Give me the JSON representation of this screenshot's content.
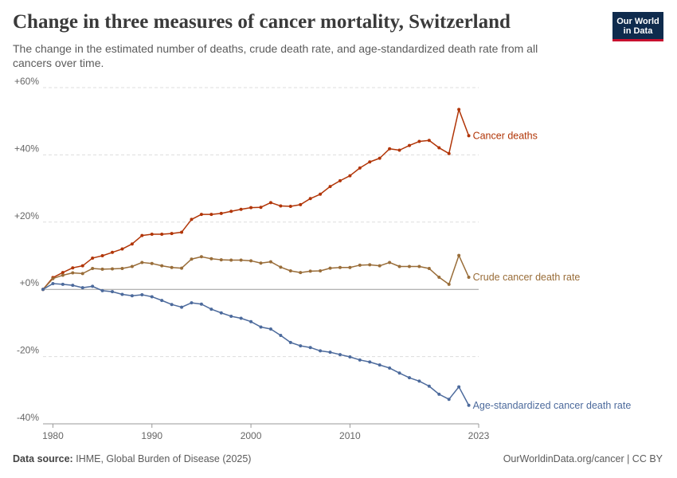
{
  "header": {
    "title": "Change in three measures of cancer mortality, Switzerland",
    "subtitle": "The change in the estimated number of deaths, crude death rate, and age-standardized death rate from all cancers over time."
  },
  "logo": {
    "line1": "Our World",
    "line2": "in Data",
    "bg_color": "#0f2b4d",
    "accent_color": "#c8102e"
  },
  "footer": {
    "source_label": "Data source:",
    "source_text": "IHME, Global Burden of Disease (2025)",
    "credit": "OurWorldinData.org/cancer | CC BY"
  },
  "chart_data": {
    "type": "line",
    "x_tick_labels": [
      "1980",
      "1990",
      "2000",
      "2010",
      "2023"
    ],
    "x_ticks": [
      1980,
      1990,
      2000,
      2010,
      2023
    ],
    "y_tick_labels": [
      "+60%",
      "+40%",
      "+20%",
      "+0%",
      "-20%",
      "-40%"
    ],
    "y_ticks": [
      60,
      40,
      20,
      0,
      -20,
      -40
    ],
    "ylim": [
      -40,
      60
    ],
    "xlim": [
      1979,
      2023
    ],
    "grid": true,
    "legend": "inline-right",
    "x": [
      1979,
      1980,
      1981,
      1982,
      1983,
      1984,
      1985,
      1986,
      1987,
      1988,
      1989,
      1990,
      1991,
      1992,
      1993,
      1994,
      1995,
      1996,
      1997,
      1998,
      1999,
      2000,
      2001,
      2002,
      2003,
      2004,
      2005,
      2006,
      2007,
      2008,
      2009,
      2010,
      2011,
      2012,
      2013,
      2014,
      2015,
      2016,
      2017,
      2018,
      2019,
      2020,
      2021,
      2022,
      2023
    ],
    "series": [
      {
        "name": "Cancer deaths",
        "color": "#b13507",
        "values": [
          0,
          3.5,
          5,
          6.4,
          7,
          9.3,
          10,
          11,
          12,
          13.5,
          16,
          16.4,
          16.4,
          16.6,
          17,
          20.8,
          22.3,
          22.3,
          22.6,
          23.2,
          23.8,
          24.3,
          24.4,
          25.8,
          24.8,
          24.7,
          25.2,
          27,
          28.3,
          30.6,
          32.3,
          33.8,
          36.1,
          37.9,
          39,
          41.8,
          41.4,
          42.8,
          44,
          44.3,
          42.1,
          40.4,
          53.5,
          45.7,
          null
        ]
      },
      {
        "name": "Crude cancer death rate",
        "color": "#996d39",
        "values": [
          0,
          3.2,
          4.2,
          4.9,
          4.7,
          6.2,
          6,
          6.1,
          6.2,
          6.8,
          8,
          7.7,
          7,
          6.5,
          6.3,
          9,
          9.7,
          9.1,
          8.8,
          8.7,
          8.7,
          8.5,
          7.8,
          8.2,
          6.6,
          5.5,
          5,
          5.4,
          5.5,
          6.3,
          6.5,
          6.5,
          7.2,
          7.3,
          7,
          8,
          6.8,
          6.8,
          6.8,
          6.2,
          3.6,
          1.5,
          10.1,
          3.6,
          null
        ]
      },
      {
        "name": "Age-standardized cancer death rate",
        "color": "#4c6a9c",
        "values": [
          0,
          1.7,
          1.5,
          1.2,
          0.5,
          0.9,
          -0.4,
          -0.7,
          -1.5,
          -1.9,
          -1.6,
          -2.2,
          -3.3,
          -4.5,
          -5.3,
          -4,
          -4.4,
          -5.9,
          -7,
          -8,
          -8.6,
          -9.6,
          -11.2,
          -11.8,
          -13.7,
          -15.8,
          -16.8,
          -17.3,
          -18.3,
          -18.7,
          -19.4,
          -20.1,
          -21,
          -21.6,
          -22.5,
          -23.4,
          -24.9,
          -26.3,
          -27.3,
          -28.8,
          -31.2,
          -32.7,
          -29,
          -34.5,
          null
        ]
      }
    ]
  }
}
